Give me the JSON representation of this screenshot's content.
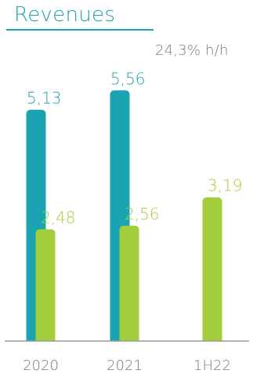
{
  "title": "Revenues",
  "growth_note": "24,3% h/h",
  "colors": {
    "title": "#1aa3b0",
    "series_teal": "#1aa3b0",
    "series_green": "#a3cd3c",
    "axis": "#9a9a9a",
    "text_grey": "#7a7a7a"
  },
  "chart_data": {
    "type": "bar",
    "title": "Revenues",
    "categories": [
      "2020",
      "2021",
      "1H22"
    ],
    "series": [
      {
        "values": [
          5.13,
          5.56,
          null
        ],
        "labels": [
          "5,13",
          "5,56",
          ""
        ],
        "color": "#1aa3b0"
      },
      {
        "values": [
          2.48,
          2.56,
          3.19
        ],
        "labels": [
          "2,48",
          "2,56",
          "3,19"
        ],
        "color": "#a3cd3c"
      }
    ],
    "ylim": [
      0,
      6
    ],
    "grid": false,
    "legend": "none"
  }
}
